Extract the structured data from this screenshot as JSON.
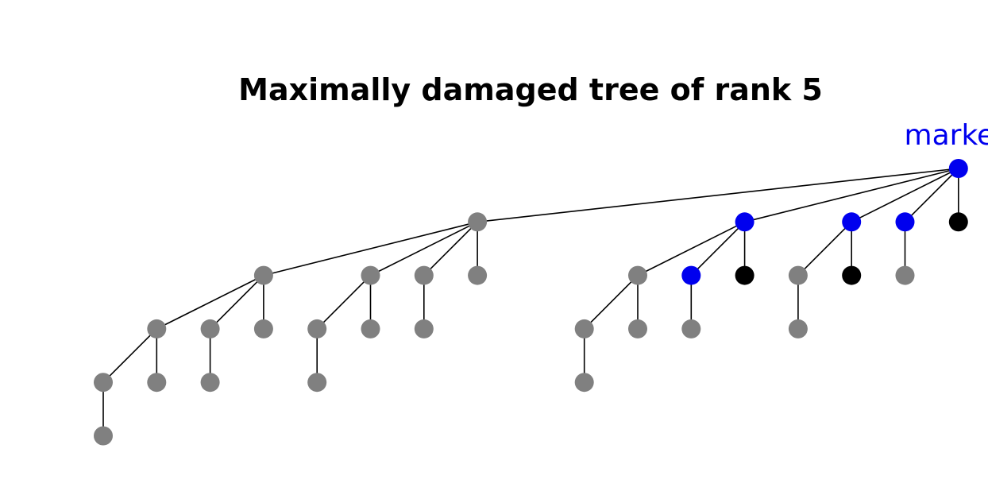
{
  "title": "Maximally damaged tree of rank 5",
  "marked_label": "marked",
  "colors": {
    "marked": "#0000ee",
    "damaged": "#808080",
    "intact": "#000000",
    "edge": "#000000"
  },
  "tree": {
    "root": "n_root",
    "nodes": [
      {
        "id": "n_root",
        "status": "marked",
        "children": [
          "n_a",
          "n_b",
          "n_c",
          "n_d",
          "n_e"
        ]
      },
      {
        "id": "n_a",
        "status": "damaged",
        "children": [
          "n_a1",
          "n_a2",
          "n_a3",
          "n_a4"
        ]
      },
      {
        "id": "n_a1",
        "status": "damaged",
        "children": [
          "n_a1a",
          "n_a1b",
          "n_a1c"
        ]
      },
      {
        "id": "n_a1a",
        "status": "damaged",
        "children": [
          "n_a1a1",
          "n_a1a2"
        ]
      },
      {
        "id": "n_a1a1",
        "status": "damaged",
        "children": [
          "n_a1a1x"
        ]
      },
      {
        "id": "n_a1a1x",
        "status": "damaged",
        "children": []
      },
      {
        "id": "n_a1a2",
        "status": "damaged",
        "children": []
      },
      {
        "id": "n_a1b",
        "status": "damaged",
        "children": [
          "n_a1b1"
        ]
      },
      {
        "id": "n_a1b1",
        "status": "damaged",
        "children": []
      },
      {
        "id": "n_a1c",
        "status": "damaged",
        "children": []
      },
      {
        "id": "n_a2",
        "status": "damaged",
        "children": [
          "n_a2a",
          "n_a2b"
        ]
      },
      {
        "id": "n_a2a",
        "status": "damaged",
        "children": [
          "n_a2a1"
        ]
      },
      {
        "id": "n_a2a1",
        "status": "damaged",
        "children": []
      },
      {
        "id": "n_a2b",
        "status": "damaged",
        "children": []
      },
      {
        "id": "n_a3",
        "status": "damaged",
        "children": [
          "n_a3a"
        ]
      },
      {
        "id": "n_a3a",
        "status": "damaged",
        "children": []
      },
      {
        "id": "n_a4",
        "status": "damaged",
        "children": []
      },
      {
        "id": "n_b",
        "status": "marked",
        "children": [
          "n_b1",
          "n_b2",
          "n_b3"
        ]
      },
      {
        "id": "n_b1",
        "status": "damaged",
        "children": [
          "n_b1a",
          "n_b1b"
        ]
      },
      {
        "id": "n_b1a",
        "status": "damaged",
        "children": [
          "n_b1a1"
        ]
      },
      {
        "id": "n_b1a1",
        "status": "damaged",
        "children": []
      },
      {
        "id": "n_b1b",
        "status": "damaged",
        "children": []
      },
      {
        "id": "n_b2",
        "status": "marked",
        "children": [
          "n_b2a"
        ]
      },
      {
        "id": "n_b2a",
        "status": "damaged",
        "children": []
      },
      {
        "id": "n_b3",
        "status": "intact",
        "children": []
      },
      {
        "id": "n_c",
        "status": "marked",
        "children": [
          "n_c1",
          "n_c2"
        ]
      },
      {
        "id": "n_c1",
        "status": "damaged",
        "children": [
          "n_c1a"
        ]
      },
      {
        "id": "n_c1a",
        "status": "damaged",
        "children": []
      },
      {
        "id": "n_c2",
        "status": "intact",
        "children": []
      },
      {
        "id": "n_d",
        "status": "marked",
        "children": [
          "n_d1"
        ]
      },
      {
        "id": "n_d1",
        "status": "damaged",
        "children": []
      },
      {
        "id": "n_e",
        "status": "intact",
        "children": []
      }
    ]
  }
}
